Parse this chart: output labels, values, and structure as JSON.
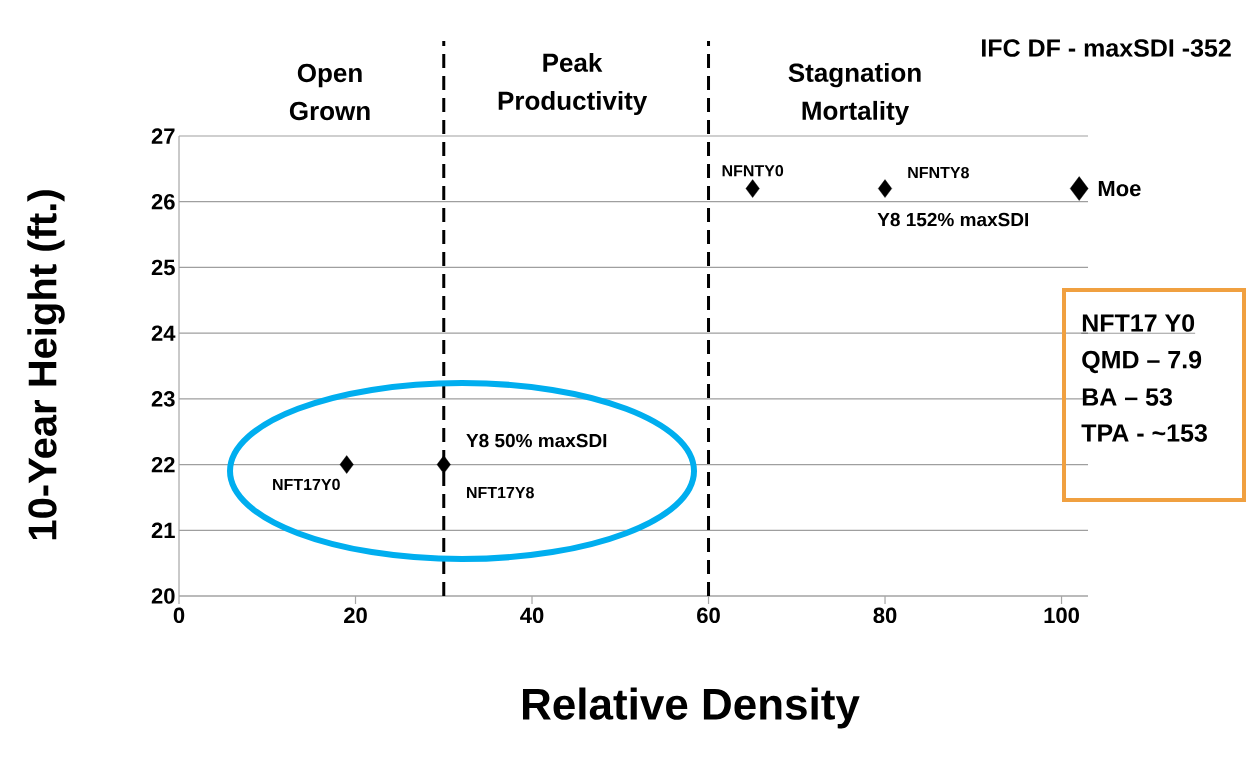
{
  "chart_data": {
    "type": "scatter",
    "title": "IFC DF - maxSDI -352",
    "xlabel": "Relative Density",
    "ylabel": "10-Year Height (ft.)",
    "series": [
      {
        "color": "#000000",
        "x": [
          19,
          30,
          65,
          80
        ],
        "values": [
          22,
          22,
          26.2,
          26.2
        ]
      },
      {
        "color": "#000000",
        "x": [
          102
        ],
        "values": [
          26.2
        ]
      }
    ],
    "xlim": [
      0,
      103
    ],
    "xticks": [
      0,
      20,
      40,
      60,
      80,
      100
    ],
    "ylim": [
      20,
      27
    ],
    "yticks": [
      20,
      21,
      22,
      23,
      24,
      25,
      26,
      27
    ],
    "grid": "y",
    "marker": "diamond",
    "ref_lines": [
      {
        "axis": "x",
        "value": 30,
        "color": "#000000",
        "line_style": "dashed"
      },
      {
        "axis": "x",
        "value": 60,
        "color": "#000000",
        "line_style": "dashed"
      }
    ],
    "annotations": [
      "Open Grown",
      "Peak Productivity",
      "Stagnation Mortality",
      {
        "text": "NFT17Y0",
        "x": 19,
        "y": 22
      },
      {
        "text": "Y8 50% maxSDI",
        "x": 30,
        "y": 22
      },
      {
        "text": "NFT17Y8",
        "x": 30,
        "y": 22
      },
      {
        "text": "NFNTY0",
        "x": 65,
        "y": 26.2
      },
      {
        "text": "NFNTY8",
        "x": 80,
        "y": 26.2
      },
      {
        "text": "Y8 152% maxSDI",
        "x": 80,
        "y": 26.2
      },
      {
        "text": "Moe",
        "x": 102,
        "y": 26.2
      },
      "NFT17 Y0",
      "QMD – 7.9",
      "BA – 53",
      "TPA - ~153"
    ]
  }
}
